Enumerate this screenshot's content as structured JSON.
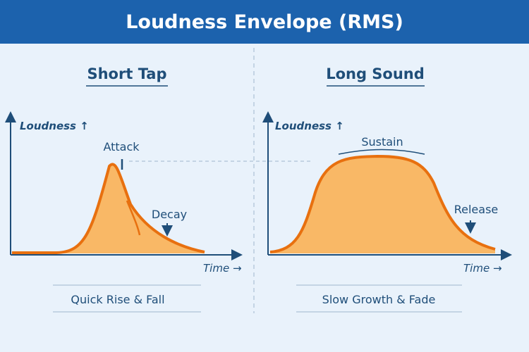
{
  "title": "Loudness Envelope (RMS)",
  "colors": {
    "header": "#1c62ad",
    "background": "#e9f2fb",
    "text": "#1f4e79",
    "curve": "#e8700f",
    "fill": "#f9b866"
  },
  "panels": [
    {
      "title": "Short Tap",
      "y_label": "Loudness ↑",
      "x_label": "Time →",
      "annotations": [
        "Attack",
        "Decay"
      ],
      "caption": "Quick Rise & Fall"
    },
    {
      "title": "Long Sound",
      "y_label": "Loudness ↑",
      "x_label": "Time →",
      "annotations": [
        "Sustain",
        "Release"
      ],
      "caption": "Slow Growth & Fade"
    }
  ]
}
